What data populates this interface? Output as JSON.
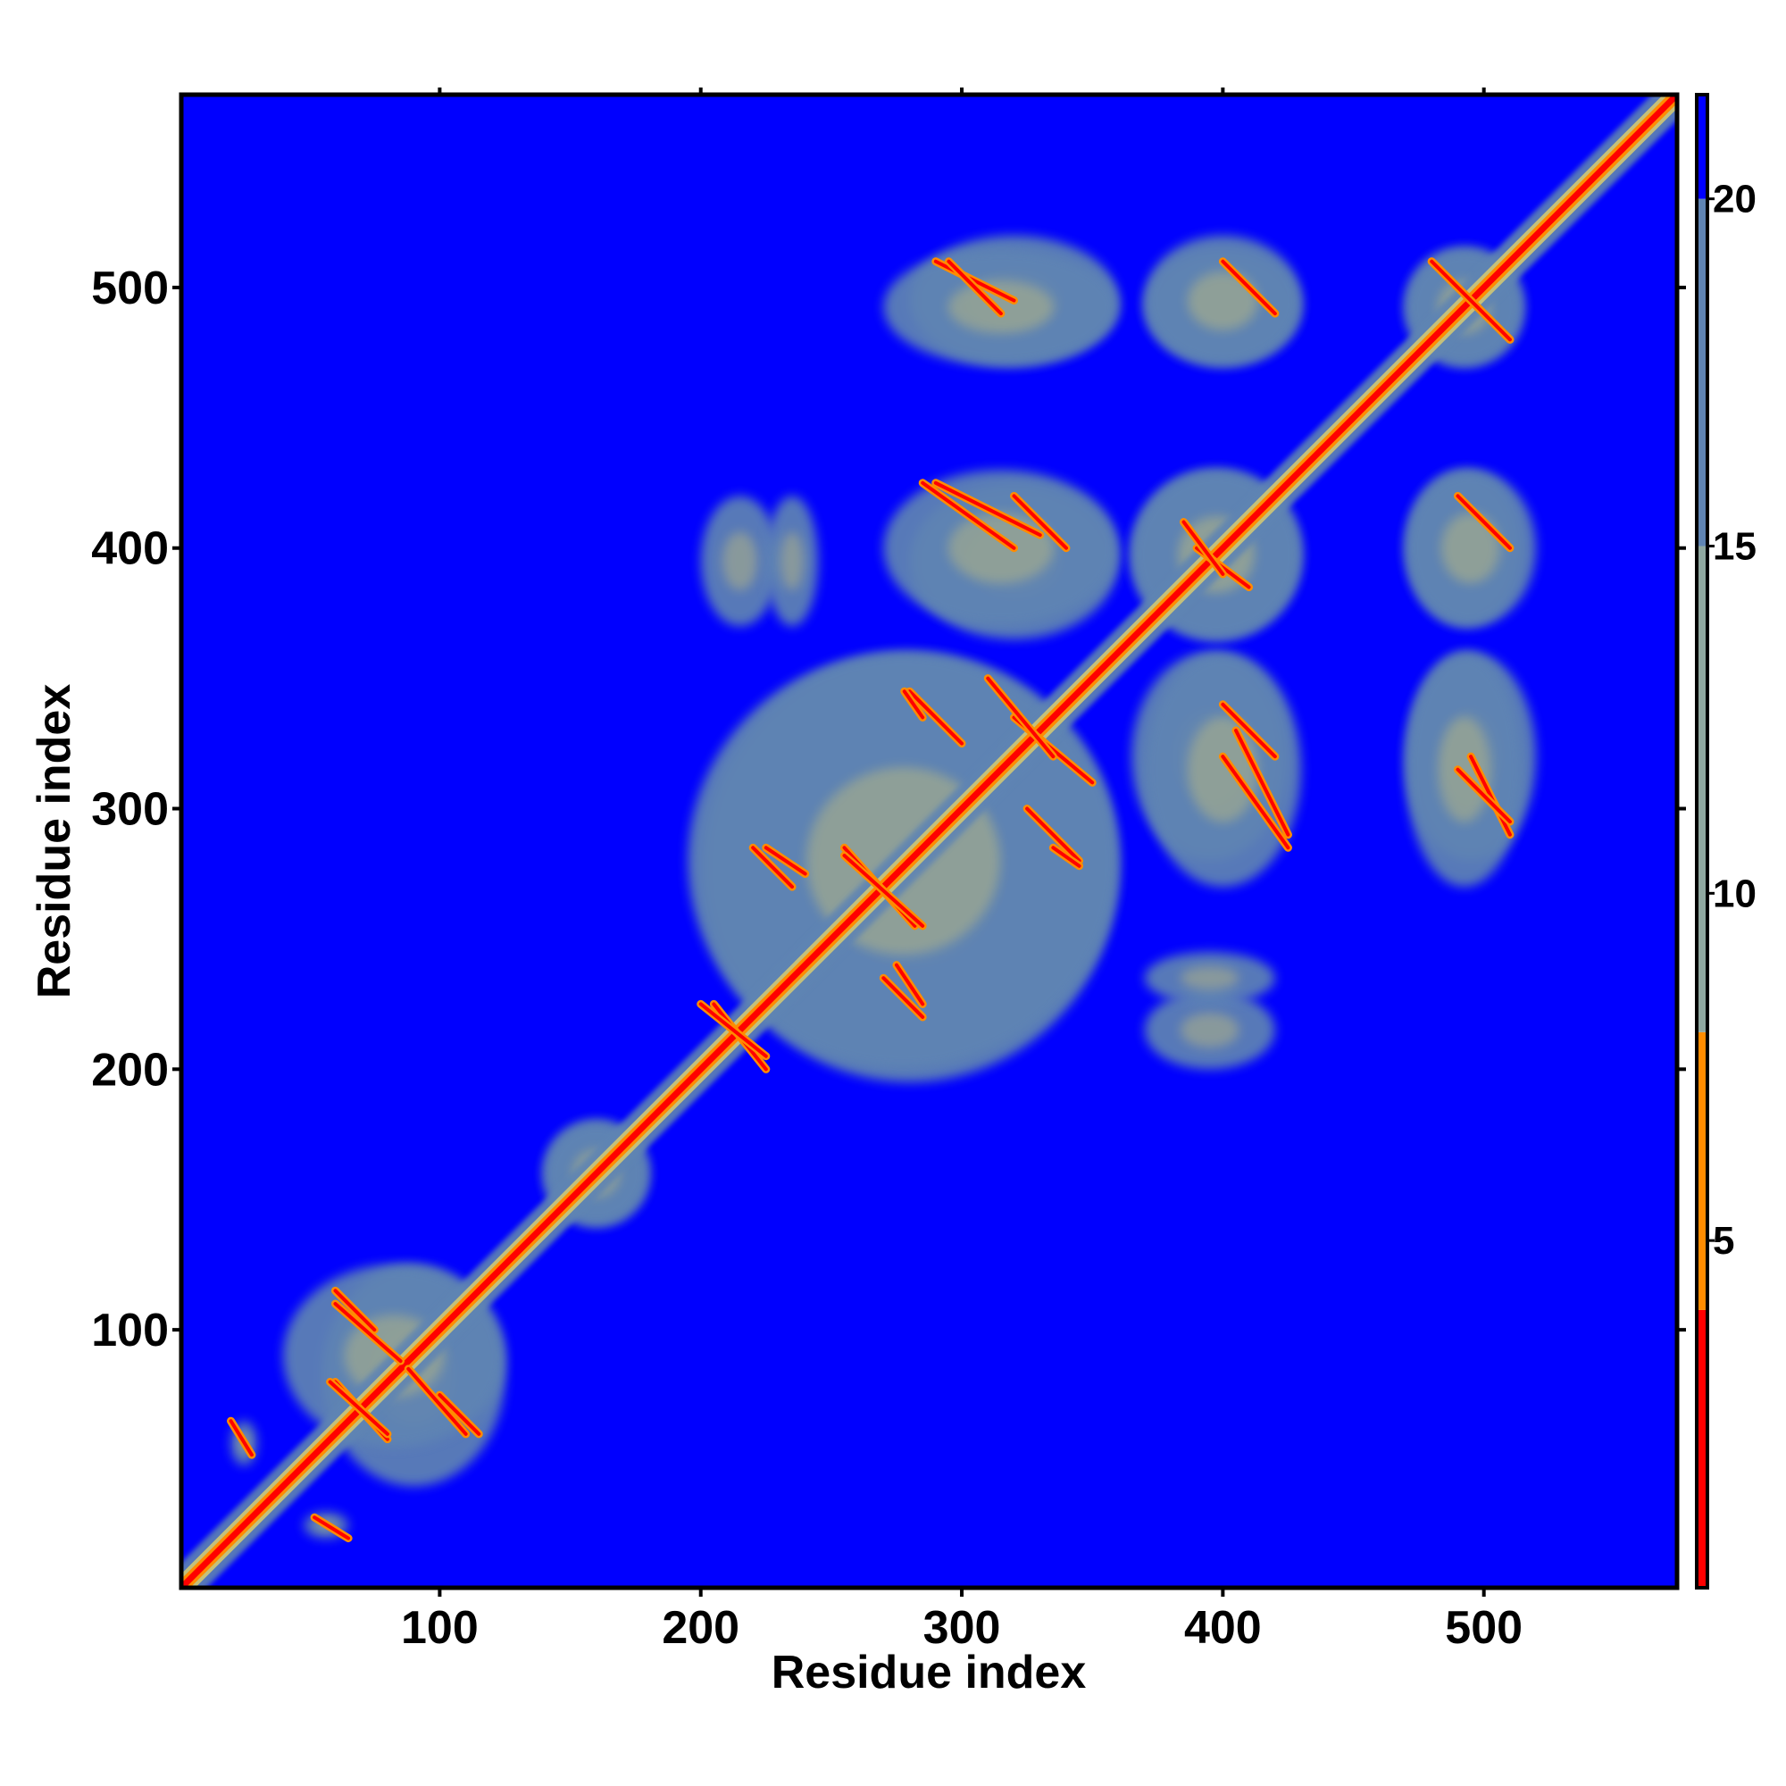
{
  "chart_data": {
    "type": "heatmap",
    "title": "",
    "xlabel": "Residue index",
    "ylabel": "Residue index",
    "xlim": [
      1,
      574
    ],
    "ylim": [
      1,
      574
    ],
    "x_ticks": [
      100,
      200,
      300,
      400,
      500
    ],
    "y_ticks": [
      100,
      200,
      300,
      400,
      500
    ],
    "colorbar": {
      "ticks": [
        5,
        10,
        15,
        20
      ],
      "range": [
        0,
        21.5
      ],
      "segments": [
        {
          "from": 0,
          "to": 4,
          "color": "#ff0000"
        },
        {
          "from": 4,
          "to": 8,
          "color": "#ff8c00"
        },
        {
          "from": 8,
          "to": 15,
          "color": "#8fa8a0"
        },
        {
          "from": 15,
          "to": 20,
          "color": "#5f84b3"
        },
        {
          "from": 20,
          "to": 21.5,
          "color": "#0000ff"
        }
      ]
    },
    "colors": {
      "background": "#0000ff",
      "far_contact": "#5f84b3",
      "mid_contact": "#c5c07a",
      "near_contact": "#ff8c00",
      "close_contact": "#ff0000"
    },
    "diagonal": {
      "from": 1,
      "to": 574
    },
    "contact_regions": [
      {
        "x": [
          55,
          125
        ],
        "y": [
          40,
          125
        ]
      },
      {
        "x": [
          20,
          30
        ],
        "y": [
          48,
          65
        ]
      },
      {
        "x": [
          200,
          360
        ],
        "y": [
          195,
          360
        ]
      },
      {
        "x": [
          280,
          360
        ],
        "y": [
          365,
          425
        ]
      },
      {
        "x": [
          365,
          430
        ],
        "y": [
          365,
          430
        ]
      },
      {
        "x": [
          280,
          360
        ],
        "y": [
          470,
          520
        ]
      },
      {
        "x": [
          370,
          430
        ],
        "y": [
          270,
          360
        ]
      },
      {
        "x": [
          470,
          515
        ],
        "y": [
          270,
          360
        ]
      },
      {
        "x": [
          470,
          515
        ],
        "y": [
          370,
          430
        ]
      },
      {
        "x": [
          470,
          515
        ],
        "y": [
          470,
          515
        ]
      },
      {
        "x": [
          370,
          430
        ],
        "y": [
          470,
          520
        ]
      },
      {
        "x": [
          200,
          230
        ],
        "y": [
          370,
          420
        ]
      },
      {
        "x": [
          370,
          420
        ],
        "y": [
          225,
          245
        ]
      },
      {
        "x": [
          140,
          180
        ],
        "y": [
          140,
          180
        ]
      }
    ],
    "contact_streaks": [
      {
        "x1": 60,
        "y1": 110,
        "x2": 85,
        "y2": 88
      },
      {
        "x1": 60,
        "y1": 80,
        "x2": 80,
        "y2": 58
      },
      {
        "x1": 100,
        "y1": 75,
        "x2": 115,
        "y2": 60
      },
      {
        "x1": 52,
        "y1": 28,
        "x2": 65,
        "y2": 20
      },
      {
        "x1": 205,
        "y1": 225,
        "x2": 225,
        "y2": 200
      },
      {
        "x1": 220,
        "y1": 285,
        "x2": 235,
        "y2": 270
      },
      {
        "x1": 255,
        "y1": 285,
        "x2": 282,
        "y2": 255
      },
      {
        "x1": 275,
        "y1": 240,
        "x2": 285,
        "y2": 225
      },
      {
        "x1": 280,
        "y1": 345,
        "x2": 300,
        "y2": 325
      },
      {
        "x1": 320,
        "y1": 335,
        "x2": 350,
        "y2": 310
      },
      {
        "x1": 335,
        "y1": 285,
        "x2": 345,
        "y2": 278
      },
      {
        "x1": 285,
        "y1": 425,
        "x2": 320,
        "y2": 400
      },
      {
        "x1": 290,
        "y1": 510,
        "x2": 320,
        "y2": 495
      },
      {
        "x1": 390,
        "y1": 400,
        "x2": 410,
        "y2": 385
      },
      {
        "x1": 400,
        "y1": 340,
        "x2": 420,
        "y2": 320
      },
      {
        "x1": 490,
        "y1": 420,
        "x2": 510,
        "y2": 400
      },
      {
        "x1": 490,
        "y1": 315,
        "x2": 510,
        "y2": 295
      },
      {
        "x1": 405,
        "y1": 330,
        "x2": 425,
        "y2": 290
      },
      {
        "x1": 480,
        "y1": 510,
        "x2": 510,
        "y2": 480
      }
    ]
  }
}
